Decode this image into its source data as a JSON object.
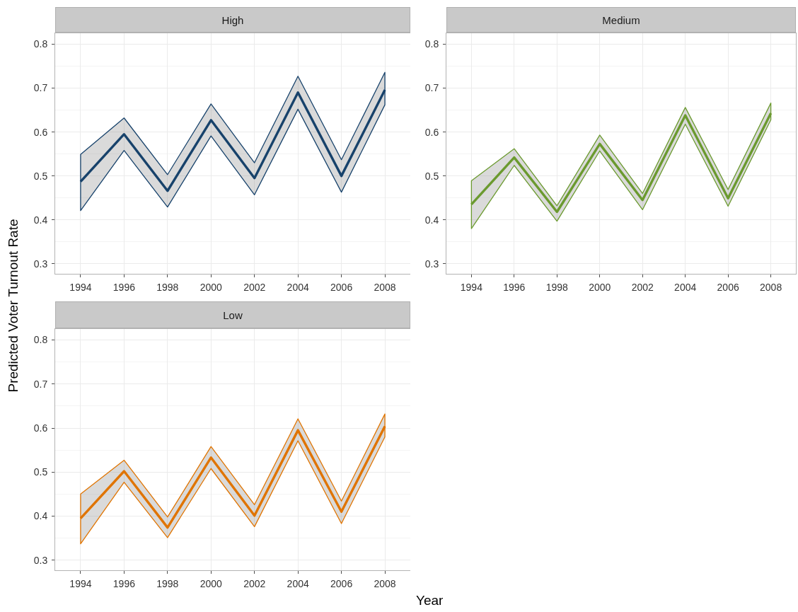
{
  "chart_data": [
    {
      "type": "line",
      "title": "High",
      "x": [
        1994,
        1996,
        1998,
        2000,
        2002,
        2004,
        2006,
        2008
      ],
      "xlim": [
        1992.83,
        2009.17
      ],
      "xticks": [
        1994,
        1996,
        1998,
        2000,
        2002,
        2004,
        2006,
        2008
      ],
      "ylim": [
        0.277,
        0.825
      ],
      "yticks": [
        0.3,
        0.4,
        0.5,
        0.6,
        0.7,
        0.8
      ],
      "grid": true,
      "series": [
        {
          "color": "#17426b",
          "values": [
            0.487,
            0.595,
            0.466,
            0.627,
            0.495,
            0.69,
            0.5,
            0.696
          ],
          "lower": [
            0.421,
            0.558,
            0.429,
            0.591,
            0.457,
            0.652,
            0.463,
            0.662
          ],
          "upper": [
            0.549,
            0.632,
            0.503,
            0.664,
            0.53,
            0.727,
            0.537,
            0.736
          ]
        }
      ]
    },
    {
      "type": "line",
      "title": "Medium",
      "x": [
        1994,
        1996,
        1998,
        2000,
        2002,
        2004,
        2006,
        2008
      ],
      "xlim": [
        1992.83,
        2009.17
      ],
      "xticks": [
        1994,
        1996,
        1998,
        2000,
        2002,
        2004,
        2006,
        2008
      ],
      "ylim": [
        0.277,
        0.825
      ],
      "yticks": [
        0.3,
        0.4,
        0.5,
        0.6,
        0.7,
        0.8
      ],
      "grid": true,
      "series": [
        {
          "color": "#6b9a2f",
          "values": [
            0.435,
            0.542,
            0.418,
            0.573,
            0.445,
            0.638,
            0.449,
            0.643
          ],
          "lower": [
            0.38,
            0.524,
            0.397,
            0.557,
            0.423,
            0.618,
            0.431,
            0.628
          ],
          "upper": [
            0.489,
            0.562,
            0.432,
            0.593,
            0.46,
            0.656,
            0.469,
            0.666
          ]
        }
      ]
    },
    {
      "type": "line",
      "title": "Low",
      "xlabel": "Year",
      "ylabel": "Predicted Voter Turnout Rate",
      "x": [
        1994,
        1996,
        1998,
        2000,
        2002,
        2004,
        2006,
        2008
      ],
      "xlim": [
        1992.83,
        2009.17
      ],
      "xticks": [
        1994,
        1996,
        1998,
        2000,
        2002,
        2004,
        2006,
        2008
      ],
      "ylim": [
        0.277,
        0.825
      ],
      "yticks": [
        0.3,
        0.4,
        0.5,
        0.6,
        0.7,
        0.8
      ],
      "grid": true,
      "series": [
        {
          "color": "#e07400",
          "values": [
            0.395,
            0.502,
            0.374,
            0.533,
            0.401,
            0.595,
            0.41,
            0.604
          ],
          "lower": [
            0.337,
            0.477,
            0.351,
            0.508,
            0.376,
            0.571,
            0.383,
            0.58
          ],
          "upper": [
            0.45,
            0.527,
            0.398,
            0.558,
            0.426,
            0.621,
            0.434,
            0.632
          ]
        }
      ]
    }
  ]
}
